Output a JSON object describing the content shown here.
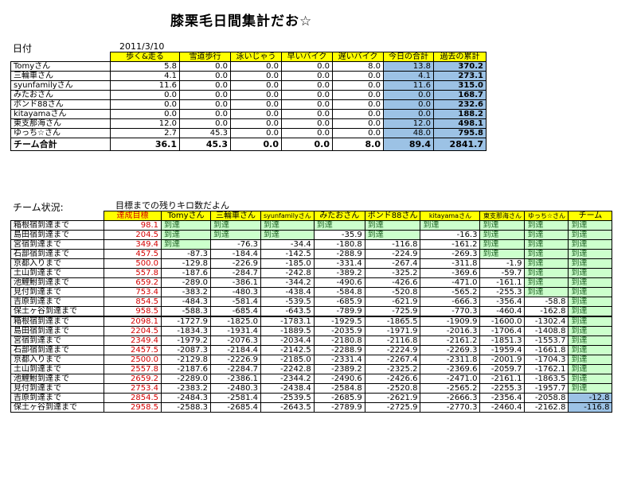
{
  "title": "膝栗毛日間集計だお☆",
  "date_label": "日付",
  "date_value": "2011/3/10",
  "summary": {
    "headers": [
      "歩く&走る",
      "雪道歩行",
      "泳いじゃう",
      "早いバイク",
      "遅いバイク",
      "今日の合計",
      "過去の累計"
    ],
    "rows": [
      {
        "name": "Tomyさん",
        "values": [
          "5.8",
          "0.0",
          "0.0",
          "0.0",
          "8.0",
          "13.8",
          "370.2"
        ]
      },
      {
        "name": "三輪車さん",
        "values": [
          "4.1",
          "0.0",
          "0.0",
          "0.0",
          "0.0",
          "4.1",
          "273.1"
        ]
      },
      {
        "name": "syunfamilyさん",
        "values": [
          "11.6",
          "0.0",
          "0.0",
          "0.0",
          "0.0",
          "11.6",
          "315.0"
        ]
      },
      {
        "name": "みたおさん",
        "values": [
          "0.0",
          "0.0",
          "0.0",
          "0.0",
          "0.0",
          "0.0",
          "168.7"
        ]
      },
      {
        "name": "ボンド88さん",
        "values": [
          "0.0",
          "0.0",
          "0.0",
          "0.0",
          "0.0",
          "0.0",
          "232.6"
        ]
      },
      {
        "name": "kitayamaさん",
        "values": [
          "0.0",
          "0.0",
          "0.0",
          "0.0",
          "0.0",
          "0.0",
          "188.2"
        ]
      },
      {
        "name": "東支那海さん",
        "values": [
          "12.0",
          "0.0",
          "0.0",
          "0.0",
          "0.0",
          "12.0",
          "498.1"
        ]
      },
      {
        "name": "ゆっち☆さん",
        "values": [
          "2.7",
          "45.3",
          "0.0",
          "0.0",
          "0.0",
          "48.0",
          "795.8"
        ]
      }
    ],
    "total": {
      "name": "チーム合計",
      "values": [
        "36.1",
        "45.3",
        "0.0",
        "0.0",
        "8.0",
        "89.4",
        "2841.7"
      ]
    }
  },
  "status": {
    "label": "チーム状況:",
    "note": "目標までの残りキロ数だよん",
    "headers": [
      "達成目標",
      "Tomyさん",
      "三輪車さん",
      "syunfamilyさん",
      "みたおさん",
      "ボンド88さん",
      "kitayamaさん",
      "東支那海さん",
      "ゆっち☆さん",
      "チーム"
    ],
    "reached": "到達",
    "rows": [
      {
        "name": "箱根宿到達まで",
        "target": "98.1",
        "v": [
          "R",
          "R",
          "R",
          "R",
          "R",
          "R",
          "R",
          "R",
          "R"
        ]
      },
      {
        "name": "島田宿到達まで",
        "target": "204.5",
        "v": [
          "R",
          "R",
          "R",
          "-35.9",
          "R",
          "-16.3",
          "R",
          "R",
          "R"
        ]
      },
      {
        "name": "宮宿到達まで",
        "target": "349.4",
        "v": [
          "R",
          "-76.3",
          "-34.4",
          "-180.8",
          "-116.8",
          "-161.2",
          "R",
          "R",
          "R"
        ]
      },
      {
        "name": "石部宿到達まで",
        "target": "457.5",
        "v": [
          "-87.3",
          "-184.4",
          "-142.5",
          "-288.9",
          "-224.9",
          "-269.3",
          "R",
          "R",
          "R"
        ]
      },
      {
        "name": "京都入りまで",
        "target": "500.0",
        "v": [
          "-129.8",
          "-226.9",
          "-185.0",
          "-331.4",
          "-267.4",
          "-311.8",
          "-1.9",
          "R",
          "R"
        ]
      },
      {
        "name": "土山到達まで",
        "target": "557.8",
        "v": [
          "-187.6",
          "-284.7",
          "-242.8",
          "-389.2",
          "-325.2",
          "-369.6",
          "-59.7",
          "R",
          "R"
        ]
      },
      {
        "name": "池鯉鮒到達まで",
        "target": "659.2",
        "v": [
          "-289.0",
          "-386.1",
          "-344.2",
          "-490.6",
          "-426.6",
          "-471.0",
          "-161.1",
          "R",
          "R"
        ]
      },
      {
        "name": "見付到達まで",
        "target": "753.4",
        "v": [
          "-383.2",
          "-480.3",
          "-438.4",
          "-584.8",
          "-520.8",
          "-565.2",
          "-255.3",
          "R",
          "R"
        ]
      },
      {
        "name": "吉原到達まで",
        "target": "854.5",
        "v": [
          "-484.3",
          "-581.4",
          "-539.5",
          "-685.9",
          "-621.9",
          "-666.3",
          "-356.4",
          "-58.8",
          "R"
        ]
      },
      {
        "name": "保土ヶ谷到達まで",
        "target": "958.5",
        "v": [
          "-588.3",
          "-685.4",
          "-643.5",
          "-789.9",
          "-725.9",
          "-770.3",
          "-460.4",
          "-162.8",
          "R"
        ]
      },
      {
        "name": "箱根宿到達まで",
        "target": "2098.1",
        "v": [
          "-1727.9",
          "-1825.0",
          "-1783.1",
          "-1929.5",
          "-1865.5",
          "-1909.9",
          "-1600.0",
          "-1302.4",
          "R"
        ]
      },
      {
        "name": "島田宿到達まで",
        "target": "2204.5",
        "v": [
          "-1834.3",
          "-1931.4",
          "-1889.5",
          "-2035.9",
          "-1971.9",
          "-2016.3",
          "-1706.4",
          "-1408.8",
          "R"
        ]
      },
      {
        "name": "宮宿到達まで",
        "target": "2349.4",
        "v": [
          "-1979.2",
          "-2076.3",
          "-2034.4",
          "-2180.8",
          "-2116.8",
          "-2161.2",
          "-1851.3",
          "-1553.7",
          "R"
        ]
      },
      {
        "name": "石部宿到達まで",
        "target": "2457.5",
        "v": [
          "-2087.3",
          "-2184.4",
          "-2142.5",
          "-2288.9",
          "-2224.9",
          "-2269.3",
          "-1959.4",
          "-1661.8",
          "R"
        ]
      },
      {
        "name": "京都入りまで",
        "target": "2500.0",
        "v": [
          "-2129.8",
          "-2226.9",
          "-2185.0",
          "-2331.4",
          "-2267.4",
          "-2311.8",
          "-2001.9",
          "-1704.3",
          "R"
        ]
      },
      {
        "name": "土山到達まで",
        "target": "2557.8",
        "v": [
          "-2187.6",
          "-2284.7",
          "-2242.8",
          "-2389.2",
          "-2325.2",
          "-2369.6",
          "-2059.7",
          "-1762.1",
          "R"
        ]
      },
      {
        "name": "池鯉鮒到達まで",
        "target": "2659.2",
        "v": [
          "-2289.0",
          "-2386.1",
          "-2344.2",
          "-2490.6",
          "-2426.6",
          "-2471.0",
          "-2161.1",
          "-1863.5",
          "R"
        ]
      },
      {
        "name": "見付到達まで",
        "target": "2753.4",
        "v": [
          "-2383.2",
          "-2480.3",
          "-2438.4",
          "-2584.8",
          "-2520.8",
          "-2565.2",
          "-2255.3",
          "-1957.7",
          "R"
        ]
      },
      {
        "name": "吉原到達まで",
        "target": "2854.5",
        "v": [
          "-2484.3",
          "-2581.4",
          "-2539.5",
          "-2685.9",
          "-2621.9",
          "-2666.3",
          "-2356.4",
          "-2058.8",
          "-12.8"
        ]
      },
      {
        "name": "保土ヶ谷到達まで",
        "target": "2958.5",
        "v": [
          "-2588.3",
          "-2685.4",
          "-2643.5",
          "-2789.9",
          "-2725.9",
          "-2770.3",
          "-2460.4",
          "-2162.8",
          "-116.8"
        ]
      }
    ]
  }
}
